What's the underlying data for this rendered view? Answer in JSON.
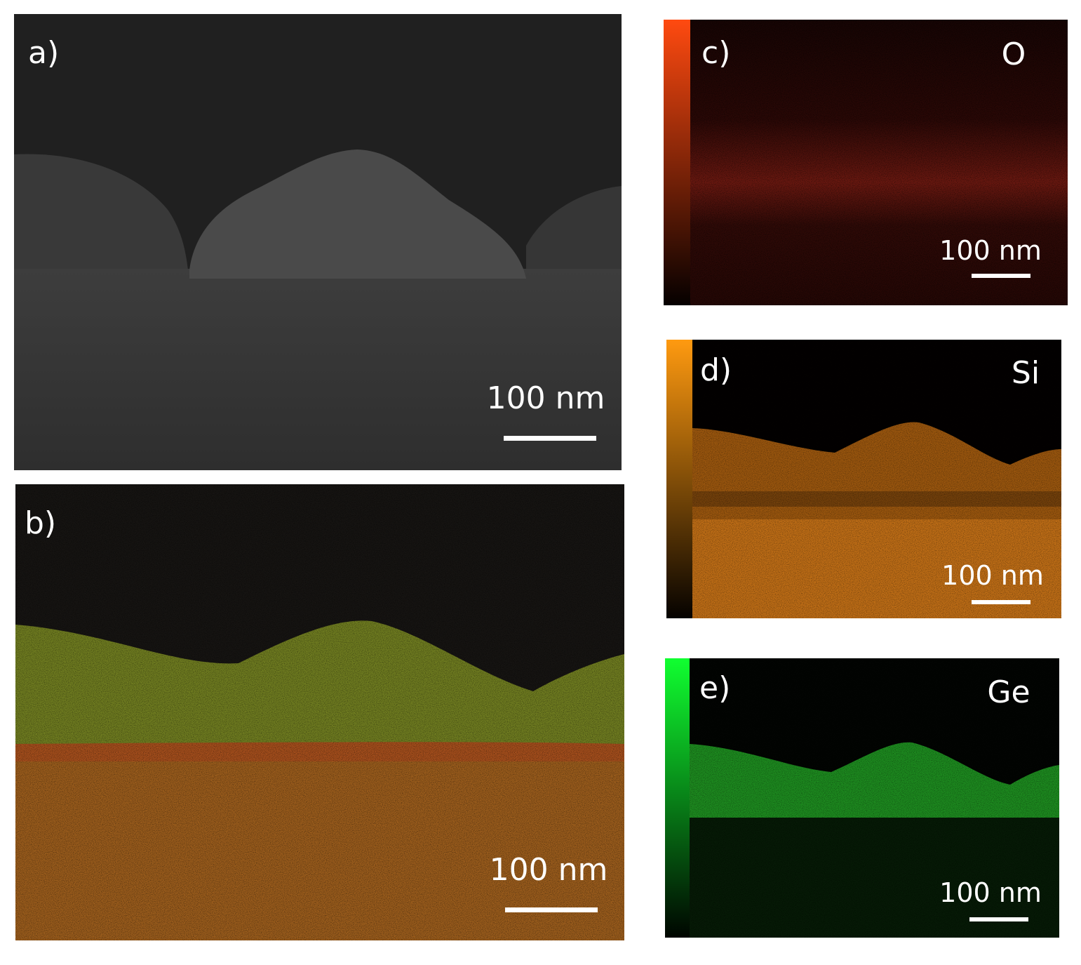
{
  "panels": [
    {
      "label": "a)",
      "scale_bar": "100 nm"
    },
    {
      "label": "b)",
      "scale_bar": "100 nm"
    },
    {
      "label": "c)",
      "element": "O",
      "scale_bar": "100 nm"
    },
    {
      "label": "d)",
      "element": "Si",
      "scale_bar": "100 nm"
    },
    {
      "label": "e)",
      "element": "Ge",
      "scale_bar": "100 nm"
    }
  ]
}
